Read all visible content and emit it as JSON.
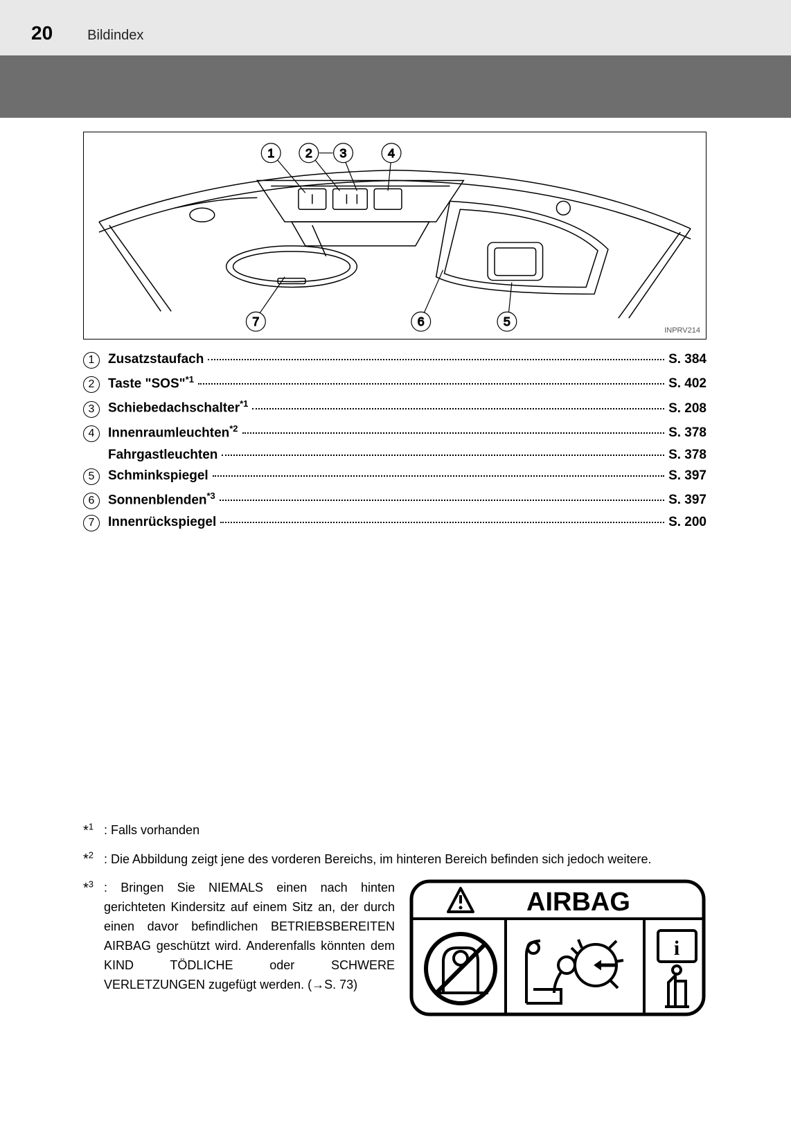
{
  "page_number": "20",
  "section_title": "Bildindex",
  "diagram": {
    "image_code": "INPRV214",
    "callouts": [
      "1",
      "2",
      "3",
      "4",
      "5",
      "6",
      "7"
    ],
    "line_color": "#000000",
    "bg_color": "#ffffff"
  },
  "index_items": [
    {
      "num": "1",
      "label": "Zusatzstaufach",
      "sup": "",
      "page": "S. 384"
    },
    {
      "num": "2",
      "label": "Taste \"SOS\"",
      "sup": "*1",
      "page": "S. 402"
    },
    {
      "num": "3",
      "label": "Schiebedachschalter",
      "sup": "*1",
      "page": "S. 208"
    },
    {
      "num": "4",
      "label": "Innenraumleuchten",
      "sup": "*2",
      "page": "S. 378"
    },
    {
      "num": "",
      "label": "Fahrgastleuchten",
      "sup": "",
      "page": "S. 378",
      "sub": true
    },
    {
      "num": "5",
      "label": "Schminkspiegel",
      "sup": "",
      "page": "S. 397"
    },
    {
      "num": "6",
      "label": "Sonnenblenden",
      "sup": "*3",
      "page": "S. 397"
    },
    {
      "num": "7",
      "label": "Innenrückspiegel",
      "sup": "",
      "page": "S. 200"
    }
  ],
  "footnotes": {
    "fn1_mark": "*1",
    "fn1_text": ": Falls vorhanden",
    "fn2_mark": "*2",
    "fn2_text": ": Die Abbildung zeigt jene des vorderen Bereichs, im hinteren Bereich befinden sich jedoch weitere.",
    "fn3_mark": "*3",
    "fn3_text": ": Bringen Sie NIEMALS einen nach hinten gerichteten Kindersitz auf einem Sitz an, der durch einen davor befindlichen BETRIEBSBEREITEN AIRBAG geschützt wird. Anderenfalls könnten dem KIND TÖDLICHE oder SCHWERE VERLETZUNGEN zugefügt werden. (→S. 73)"
  },
  "airbag_label": {
    "title": "AIRBAG",
    "border_color": "#000000",
    "bg_color": "#ffffff",
    "title_fontsize": 34,
    "prohibit_color": "#000000"
  },
  "colors": {
    "page_bg": "#e8e8e8",
    "dark_band": "#6e6e6e",
    "text": "#000000"
  }
}
